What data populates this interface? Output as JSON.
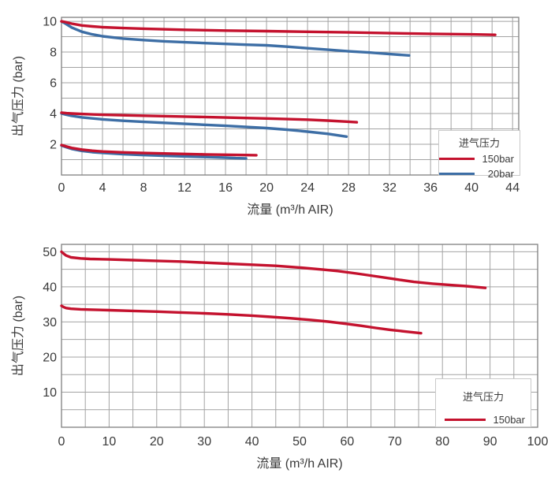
{
  "colors": {
    "red": "#C4122E",
    "blue": "#3D6EA5",
    "grid": "#a3a3a3",
    "plot_border": "#7f7f7f",
    "text": "#3a3a3a",
    "legend_border": "#c9c9c9"
  },
  "chart_data": [
    {
      "type": "line",
      "title": "",
      "xlabel": "流量 (m³/h AIR)",
      "ylabel": "出气压力 (bar)",
      "xlim": [
        0,
        44.6
      ],
      "ylim": [
        0,
        10.26
      ],
      "x_ticks": [
        0,
        4,
        8,
        12,
        16,
        20,
        24,
        28,
        32,
        36,
        40,
        44
      ],
      "y_ticks": [
        2,
        4,
        6,
        8,
        10
      ],
      "x_grid_step": 2,
      "y_grid_step": 1,
      "grid": true,
      "legend": {
        "title": "进气压力",
        "position": "bottom-right",
        "entries": [
          {
            "label": "150bar",
            "color": "#C4122E"
          },
          {
            "label": "20bar",
            "color": "#3D6EA5"
          }
        ]
      },
      "series": [
        {
          "name": "20bar inlet, 10bar setting",
          "inlet": "20bar",
          "color": "#3D6EA5",
          "points": [
            [
              0,
              10
            ],
            [
              0.4,
              9.85
            ],
            [
              1,
              9.6
            ],
            [
              2,
              9.32
            ],
            [
              3,
              9.15
            ],
            [
              4,
              9.03
            ],
            [
              6,
              8.88
            ],
            [
              8,
              8.78
            ],
            [
              10,
              8.7
            ],
            [
              12,
              8.64
            ],
            [
              14,
              8.58
            ],
            [
              16,
              8.53
            ],
            [
              18,
              8.48
            ],
            [
              20,
              8.44
            ],
            [
              22,
              8.35
            ],
            [
              24,
              8.25
            ],
            [
              26,
              8.15
            ],
            [
              28,
              8.05
            ],
            [
              30,
              7.97
            ],
            [
              32,
              7.87
            ],
            [
              33.9,
              7.78
            ]
          ]
        },
        {
          "name": "20bar inlet, 4bar setting",
          "inlet": "20bar",
          "color": "#3D6EA5",
          "points": [
            [
              0,
              4.0
            ],
            [
              0.5,
              3.92
            ],
            [
              1,
              3.85
            ],
            [
              2,
              3.75
            ],
            [
              4,
              3.62
            ],
            [
              6,
              3.53
            ],
            [
              8,
              3.46
            ],
            [
              12,
              3.33
            ],
            [
              16,
              3.2
            ],
            [
              20,
              3.05
            ],
            [
              22,
              2.95
            ],
            [
              24,
              2.82
            ],
            [
              26,
              2.68
            ],
            [
              27.8,
              2.5
            ]
          ]
        },
        {
          "name": "20bar inlet, 2bar setting",
          "inlet": "20bar",
          "color": "#3D6EA5",
          "points": [
            [
              0,
              1.92
            ],
            [
              0.5,
              1.8
            ],
            [
              1,
              1.7
            ],
            [
              2,
              1.57
            ],
            [
              3,
              1.49
            ],
            [
              4,
              1.44
            ],
            [
              6,
              1.36
            ],
            [
              8,
              1.3
            ],
            [
              10,
              1.25
            ],
            [
              12,
              1.21
            ],
            [
              14,
              1.17
            ],
            [
              16,
              1.13
            ],
            [
              17,
              1.1
            ],
            [
              18,
              1.08
            ]
          ]
        },
        {
          "name": "150bar inlet, 10bar setting",
          "inlet": "150bar",
          "color": "#C4122E",
          "points": [
            [
              0,
              10
            ],
            [
              0.4,
              9.95
            ],
            [
              1,
              9.85
            ],
            [
              2,
              9.73
            ],
            [
              3,
              9.67
            ],
            [
              4,
              9.62
            ],
            [
              6,
              9.56
            ],
            [
              8,
              9.52
            ],
            [
              12,
              9.45
            ],
            [
              16,
              9.4
            ],
            [
              20,
              9.36
            ],
            [
              24,
              9.32
            ],
            [
              28,
              9.28
            ],
            [
              32,
              9.23
            ],
            [
              36,
              9.19
            ],
            [
              40,
              9.15
            ],
            [
              42.3,
              9.12
            ]
          ]
        },
        {
          "name": "150bar inlet, 4bar setting",
          "inlet": "150bar",
          "color": "#C4122E",
          "points": [
            [
              0,
              4.06
            ],
            [
              0.5,
              4.02
            ],
            [
              1,
              4.0
            ],
            [
              2,
              3.97
            ],
            [
              4,
              3.92
            ],
            [
              8,
              3.86
            ],
            [
              12,
              3.8
            ],
            [
              16,
              3.74
            ],
            [
              20,
              3.68
            ],
            [
              24,
              3.6
            ],
            [
              26,
              3.54
            ],
            [
              28,
              3.47
            ],
            [
              28.8,
              3.43
            ]
          ]
        },
        {
          "name": "150bar inlet, 2bar setting",
          "inlet": "150bar",
          "color": "#C4122E",
          "points": [
            [
              0,
              1.95
            ],
            [
              0.5,
              1.85
            ],
            [
              1,
              1.76
            ],
            [
              2,
              1.65
            ],
            [
              3,
              1.58
            ],
            [
              4,
              1.53
            ],
            [
              6,
              1.47
            ],
            [
              8,
              1.43
            ],
            [
              10,
              1.4
            ],
            [
              12,
              1.37
            ],
            [
              14,
              1.34
            ],
            [
              16,
              1.32
            ],
            [
              18,
              1.3
            ],
            [
              19,
              1.29
            ]
          ]
        }
      ]
    },
    {
      "type": "line",
      "title": "",
      "xlabel": "流量 (m³/h AIR)",
      "ylabel": "出气压力 (bar)",
      "xlim": [
        0,
        100
      ],
      "ylim": [
        0,
        52.1
      ],
      "x_ticks": [
        0,
        10,
        20,
        30,
        40,
        50,
        60,
        70,
        80,
        90,
        100
      ],
      "y_ticks": [
        10,
        20,
        30,
        40,
        50
      ],
      "x_grid_step": 5,
      "y_grid_step": 5,
      "grid": true,
      "legend": {
        "title": "进气压力",
        "position": "bottom-right",
        "entries": [
          {
            "label": "150bar",
            "color": "#C4122E"
          }
        ]
      },
      "series": [
        {
          "name": "150bar inlet, 50bar setting",
          "inlet": "150bar",
          "color": "#C4122E",
          "points": [
            [
              0,
              50
            ],
            [
              0.5,
              49.4
            ],
            [
              1,
              48.9
            ],
            [
              2,
              48.4
            ],
            [
              4,
              48.1
            ],
            [
              6,
              47.95
            ],
            [
              10,
              47.8
            ],
            [
              15,
              47.6
            ],
            [
              20,
              47.4
            ],
            [
              25,
              47.2
            ],
            [
              30,
              46.9
            ],
            [
              35,
              46.6
            ],
            [
              40,
              46.3
            ],
            [
              45,
              46.0
            ],
            [
              50,
              45.5
            ],
            [
              55,
              44.9
            ],
            [
              58,
              44.5
            ],
            [
              62,
              43.8
            ],
            [
              66,
              43.0
            ],
            [
              70,
              42.2
            ],
            [
              74,
              41.4
            ],
            [
              78,
              40.9
            ],
            [
              82,
              40.5
            ],
            [
              85,
              40.2
            ],
            [
              89,
              39.7
            ]
          ]
        },
        {
          "name": "150bar inlet, 34bar setting",
          "inlet": "150bar",
          "color": "#C4122E",
          "points": [
            [
              0,
              34.6
            ],
            [
              0.5,
              34.2
            ],
            [
              1,
              33.95
            ],
            [
              2,
              33.75
            ],
            [
              4,
              33.6
            ],
            [
              6,
              33.5
            ],
            [
              10,
              33.35
            ],
            [
              15,
              33.15
            ],
            [
              20,
              32.95
            ],
            [
              25,
              32.7
            ],
            [
              30,
              32.45
            ],
            [
              35,
              32.15
            ],
            [
              40,
              31.8
            ],
            [
              44,
              31.45
            ],
            [
              48,
              31.05
            ],
            [
              52,
              30.6
            ],
            [
              56,
              30.1
            ],
            [
              60,
              29.45
            ],
            [
              63,
              28.9
            ],
            [
              66,
              28.3
            ],
            [
              69,
              27.75
            ],
            [
              72,
              27.3
            ],
            [
              75.5,
              26.8
            ]
          ]
        }
      ]
    }
  ]
}
